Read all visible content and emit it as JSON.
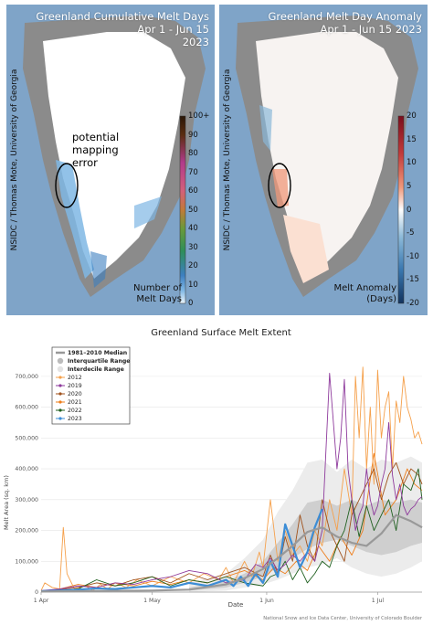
{
  "maps": {
    "left": {
      "title_line1": "Greenland Cumulative Melt Days",
      "title_line2": "Apr 1 - Jun 15",
      "title_line3": "2023",
      "credit": "NSIDC / Thomas Mote, University of Georgia",
      "annotation": [
        "potential",
        "mapping",
        "error"
      ],
      "colorbar_title": "Number of",
      "colorbar_title2": "Melt Days",
      "colorbar_ticks": [
        "100+",
        "90",
        "80",
        "70",
        "60",
        "50",
        "40",
        "30",
        "20",
        "10",
        "0"
      ],
      "colors": [
        "#2a1607",
        "#5b2d10",
        "#7b3a6b",
        "#b23b8c",
        "#d2607a",
        "#c27a3a",
        "#6a9a3a",
        "#2f8f5a",
        "#3c7fc0",
        "#7fb7e4",
        "#eaf4fb"
      ]
    },
    "right": {
      "title_line1": "Greenland Melt Day Anomaly",
      "title_line2": "Apr 1 - Jun 15 2023",
      "credit": "NSIDC / Thomas Mote, University of Georgia",
      "colorbar_title": "Melt Anomaly",
      "colorbar_title2": "(Days)",
      "colorbar_ticks": [
        "20",
        "15",
        "10",
        "5",
        "0",
        "-5",
        "-10",
        "-15",
        "-20"
      ],
      "colors": [
        "#7a0d1c",
        "#c23a3a",
        "#f0987a",
        "#fbe0d2",
        "#ffffff",
        "#d8e8f2",
        "#8ab8d8",
        "#3a78b0",
        "#12335e"
      ]
    }
  },
  "chart_data": {
    "type": "line",
    "title": "Greenland Surface Melt Extent",
    "xlabel": "Date",
    "ylabel": "Melt Area (sq. km)",
    "ylim": [
      0,
      750000
    ],
    "yticks": [
      0,
      100000,
      200000,
      300000,
      400000,
      500000,
      600000,
      700000
    ],
    "ytick_labels": [
      "0",
      "100,000",
      "200,000",
      "300,000",
      "400,000",
      "500,000",
      "600,000",
      "700,000"
    ],
    "xlim": [
      0,
      103
    ],
    "xticks": [
      0,
      30,
      61,
      91
    ],
    "xtick_labels": [
      "1 Apr",
      "1 May",
      "1 Jun",
      "1 Jul"
    ],
    "source": "National Snow and Ice Data Center, University of Colorado Boulder",
    "legend_location": "top-left",
    "legend": [
      {
        "name": "1981–2010 Median",
        "color": "#999999",
        "kind": "line"
      },
      {
        "name": "Interquartile Range",
        "color": "#bbbbbb",
        "kind": "dot"
      },
      {
        "name": "Interdecile Range",
        "color": "#e3e3e3",
        "kind": "dot"
      },
      {
        "name": "2012",
        "color": "#f5a04b",
        "kind": "series"
      },
      {
        "name": "2019",
        "color": "#8e3a9c",
        "kind": "series"
      },
      {
        "name": "2020",
        "color": "#a0521c",
        "kind": "series"
      },
      {
        "name": "2021",
        "color": "#ee7d1a",
        "kind": "series"
      },
      {
        "name": "2022",
        "color": "#1f5f1f",
        "kind": "series"
      },
      {
        "name": "2023",
        "color": "#3c8dd6",
        "kind": "series"
      }
    ],
    "bands": {
      "x": [
        40,
        50,
        55,
        60,
        64,
        68,
        72,
        76,
        80,
        84,
        88,
        92,
        96,
        100,
        103
      ],
      "decile_low": [
        0,
        5000,
        15000,
        25000,
        40000,
        60000,
        80000,
        90000,
        110000,
        80000,
        60000,
        50000,
        60000,
        80000,
        100000
      ],
      "decile_high": [
        30000,
        60000,
        110000,
        170000,
        260000,
        330000,
        420000,
        430000,
        390000,
        430000,
        400000,
        430000,
        420000,
        440000,
        420000
      ],
      "quart_low": [
        5000,
        15000,
        30000,
        50000,
        80000,
        110000,
        140000,
        160000,
        170000,
        150000,
        130000,
        120000,
        130000,
        150000,
        160000
      ],
      "quart_high": [
        15000,
        35000,
        60000,
        100000,
        160000,
        220000,
        290000,
        300000,
        280000,
        300000,
        280000,
        300000,
        290000,
        300000,
        290000
      ]
    },
    "median": {
      "x": [
        0,
        30,
        40,
        50,
        55,
        60,
        64,
        68,
        72,
        76,
        80,
        84,
        88,
        92,
        96,
        100,
        103
      ],
      "y": [
        2000,
        5000,
        8000,
        25000,
        45000,
        75000,
        110000,
        150000,
        195000,
        210000,
        180000,
        160000,
        150000,
        190000,
        250000,
        230000,
        210000
      ]
    },
    "series": [
      {
        "name": "2012",
        "color": "#f5a04b",
        "x": [
          0,
          1,
          3,
          5,
          6,
          7,
          9,
          12,
          14,
          16,
          18,
          20,
          23,
          26,
          30,
          35,
          40,
          44,
          48,
          50,
          52,
          55,
          57,
          59,
          60,
          62,
          64,
          66,
          68,
          70,
          72,
          74,
          76,
          78,
          80,
          82,
          84,
          85,
          86,
          87,
          88,
          89,
          90,
          91,
          92,
          93,
          94,
          95,
          96,
          97,
          98,
          99,
          100,
          101,
          102,
          103
        ],
        "y": [
          5000,
          30000,
          15000,
          10000,
          210000,
          60000,
          10000,
          20000,
          5000,
          25000,
          10000,
          30000,
          15000,
          40000,
          20000,
          50000,
          30000,
          60000,
          40000,
          80000,
          30000,
          100000,
          50000,
          130000,
          80000,
          300000,
          100000,
          200000,
          120000,
          150000,
          100000,
          200000,
          150000,
          300000,
          200000,
          400000,
          250000,
          700000,
          500000,
          730000,
          400000,
          600000,
          350000,
          720000,
          500000,
          600000,
          650000,
          400000,
          620000,
          550000,
          700000,
          600000,
          560000,
          500000,
          520000,
          480000
        ]
      },
      {
        "name": "2019",
        "color": "#8e3a9c",
        "x": [
          0,
          5,
          10,
          15,
          20,
          25,
          30,
          35,
          40,
          45,
          50,
          55,
          58,
          60,
          62,
          64,
          66,
          68,
          70,
          72,
          74,
          76,
          78,
          80,
          81,
          82,
          83,
          84,
          85,
          86,
          87,
          88,
          89,
          90,
          91,
          92,
          93,
          94,
          95,
          96,
          97,
          98,
          99,
          100,
          101,
          102,
          103
        ],
        "y": [
          5000,
          10000,
          20000,
          15000,
          30000,
          25000,
          40000,
          50000,
          70000,
          60000,
          30000,
          40000,
          90000,
          80000,
          110000,
          70000,
          90000,
          120000,
          100000,
          130000,
          100000,
          200000,
          710000,
          400000,
          500000,
          690000,
          400000,
          300000,
          200000,
          250000,
          280000,
          400000,
          300000,
          250000,
          280000,
          350000,
          400000,
          550000,
          380000,
          300000,
          350000,
          280000,
          250000,
          270000,
          280000,
          300000,
          310000
        ]
      },
      {
        "name": "2020",
        "color": "#a0521c",
        "x": [
          0,
          5,
          10,
          15,
          20,
          25,
          30,
          35,
          40,
          45,
          50,
          55,
          60,
          62,
          64,
          66,
          68,
          70,
          72,
          74,
          76,
          78,
          80,
          82,
          84,
          86,
          88,
          90,
          92,
          94,
          96,
          98,
          100,
          102,
          103
        ],
        "y": [
          3000,
          8000,
          15000,
          30000,
          20000,
          40000,
          50000,
          30000,
          60000,
          40000,
          60000,
          80000,
          50000,
          120000,
          60000,
          180000,
          100000,
          250000,
          150000,
          100000,
          300000,
          200000,
          150000,
          100000,
          250000,
          300000,
          350000,
          400000,
          300000,
          380000,
          420000,
          350000,
          400000,
          380000,
          350000
        ]
      },
      {
        "name": "2021",
        "color": "#ee7d1a",
        "x": [
          0,
          5,
          10,
          15,
          20,
          25,
          30,
          35,
          40,
          45,
          50,
          55,
          60,
          63,
          66,
          69,
          72,
          75,
          78,
          81,
          84,
          87,
          90,
          93,
          96,
          99,
          101,
          103
        ],
        "y": [
          2000,
          10000,
          25000,
          15000,
          30000,
          20000,
          35000,
          25000,
          40000,
          30000,
          50000,
          70000,
          40000,
          80000,
          60000,
          100000,
          70000,
          150000,
          100000,
          180000,
          120000,
          200000,
          450000,
          250000,
          300000,
          400000,
          350000,
          330000
        ]
      },
      {
        "name": "2022",
        "color": "#1f5f1f",
        "x": [
          0,
          5,
          10,
          15,
          20,
          25,
          30,
          35,
          40,
          45,
          50,
          55,
          60,
          62,
          64,
          66,
          68,
          70,
          72,
          74,
          76,
          78,
          80,
          82,
          84,
          86,
          88,
          90,
          92,
          94,
          96,
          98,
          100,
          102,
          103
        ],
        "y": [
          2000,
          5000,
          10000,
          40000,
          20000,
          30000,
          50000,
          20000,
          40000,
          30000,
          50000,
          30000,
          20000,
          50000,
          60000,
          100000,
          40000,
          80000,
          30000,
          60000,
          100000,
          80000,
          150000,
          200000,
          300000,
          180000,
          280000,
          200000,
          250000,
          300000,
          200000,
          350000,
          330000,
          400000,
          300000
        ]
      },
      {
        "name": "2023",
        "color": "#3c8dd6",
        "x": [
          0,
          5,
          10,
          15,
          20,
          25,
          30,
          35,
          40,
          45,
          50,
          52,
          54,
          56,
          58,
          60,
          62,
          64,
          66,
          68,
          70,
          72,
          74,
          76
        ],
        "y": [
          3000,
          5000,
          8000,
          12000,
          10000,
          15000,
          20000,
          15000,
          30000,
          20000,
          40000,
          20000,
          50000,
          20000,
          60000,
          30000,
          100000,
          50000,
          220000,
          150000,
          80000,
          130000,
          210000,
          270000
        ]
      }
    ]
  }
}
